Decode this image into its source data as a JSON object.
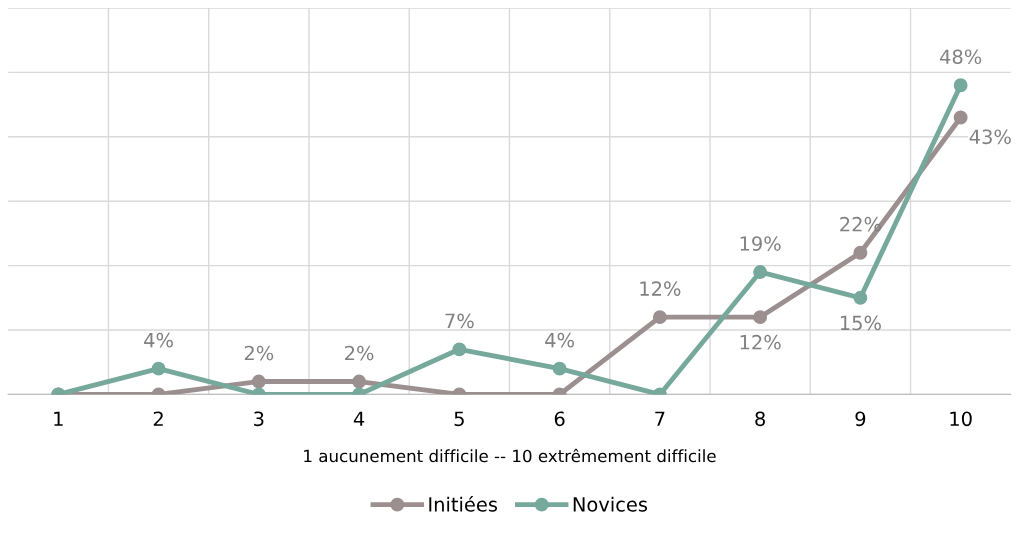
{
  "chart_data": {
    "type": "line",
    "xlabel": "1 aucunement difficile -- 10 extrêmement difficile",
    "categories": [
      "1",
      "2",
      "3",
      "4",
      "5",
      "6",
      "7",
      "8",
      "9",
      "10"
    ],
    "series": [
      {
        "name": "Initiées",
        "color": "#9c8f8f",
        "values": [
          0,
          0,
          2,
          2,
          0,
          0,
          12,
          12,
          22,
          43
        ],
        "value_labels": [
          null,
          null,
          "2%",
          "2%",
          null,
          null,
          "12%",
          "12%",
          "22%",
          "43%"
        ]
      },
      {
        "name": "Novices",
        "color": "#76a99b",
        "values": [
          0,
          4,
          0,
          0,
          7,
          4,
          0,
          19,
          15,
          48
        ],
        "value_labels": [
          null,
          "4%",
          null,
          null,
          "7%",
          "4%",
          null,
          "19%",
          "15%",
          "48%"
        ]
      }
    ],
    "ylim": [
      0,
      60
    ],
    "yticks": [
      {
        "value": 0,
        "label": null
      },
      {
        "value": 10,
        "label": null
      },
      {
        "value": 20,
        "label": null
      },
      {
        "value": 30,
        "label": null
      },
      {
        "value": 40,
        "label": null
      },
      {
        "value": 50,
        "label": null
      },
      {
        "value": 60,
        "label": null
      }
    ],
    "tick_labels": "x",
    "grid": true,
    "legend": "bottom",
    "marker": "circle",
    "line_style": "solid"
  }
}
